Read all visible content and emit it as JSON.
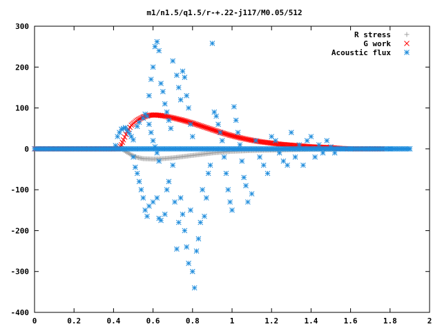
{
  "chart_data": {
    "type": "scatter",
    "title": "m1/n1.5/q1.5/r-+.22-j117/M0.05/512",
    "xlabel": "",
    "ylabel": "",
    "xlim": [
      0,
      2
    ],
    "ylim": [
      -400,
      300
    ],
    "x_ticks": [
      "0",
      "0.2",
      "0.4",
      "0.6",
      "0.8",
      "1",
      "1.2",
      "1.4",
      "1.6",
      "1.8",
      "2"
    ],
    "y_ticks": [
      "300",
      "200",
      "100",
      "0",
      "-100",
      "-200",
      "-300",
      "-400"
    ],
    "legend_position": "top-right",
    "series": [
      {
        "name": "R stress",
        "marker": "+",
        "color": "#a0a0a0",
        "curve": [
          [
            0.0,
            0
          ],
          [
            0.38,
            0
          ],
          [
            0.44,
            0
          ],
          [
            0.46,
            -6
          ],
          [
            0.48,
            -12
          ],
          [
            0.5,
            -17
          ],
          [
            0.52,
            -21
          ],
          [
            0.55,
            -24
          ],
          [
            0.6,
            -25
          ],
          [
            0.65,
            -24
          ],
          [
            0.7,
            -22
          ],
          [
            0.75,
            -19
          ],
          [
            0.8,
            -16
          ],
          [
            0.85,
            -13
          ],
          [
            0.9,
            -10
          ],
          [
            0.95,
            -8
          ],
          [
            1.0,
            -6
          ],
          [
            1.1,
            -4
          ],
          [
            1.2,
            -3
          ],
          [
            1.3,
            -2
          ],
          [
            1.4,
            -1
          ],
          [
            1.5,
            -1
          ],
          [
            1.55,
            0
          ],
          [
            1.6,
            0
          ],
          [
            1.7,
            0
          ],
          [
            1.76,
            0
          ]
        ]
      },
      {
        "name": "G work",
        "marker": "x",
        "color": "#ff0000",
        "curve": [
          [
            0.0,
            0
          ],
          [
            0.42,
            0
          ],
          [
            0.43,
            2
          ],
          [
            0.44,
            10
          ],
          [
            0.45,
            22
          ],
          [
            0.47,
            42
          ],
          [
            0.49,
            58
          ],
          [
            0.52,
            70
          ],
          [
            0.55,
            78
          ],
          [
            0.58,
            82
          ],
          [
            0.61,
            83
          ],
          [
            0.65,
            81
          ],
          [
            0.7,
            76
          ],
          [
            0.75,
            70
          ],
          [
            0.8,
            63
          ],
          [
            0.85,
            55
          ],
          [
            0.9,
            47
          ],
          [
            0.95,
            39
          ],
          [
            1.0,
            32
          ],
          [
            1.05,
            26
          ],
          [
            1.1,
            21
          ],
          [
            1.15,
            17
          ],
          [
            1.2,
            14
          ],
          [
            1.25,
            11
          ],
          [
            1.3,
            9
          ],
          [
            1.35,
            7
          ],
          [
            1.4,
            5
          ],
          [
            1.45,
            4
          ],
          [
            1.5,
            3
          ],
          [
            1.55,
            1
          ],
          [
            1.6,
            0
          ],
          [
            1.7,
            0
          ],
          [
            1.76,
            0
          ]
        ]
      },
      {
        "name": "Acoustic flux",
        "marker": "*",
        "color": "#1e8cdc",
        "baseline": [
          [
            0.0,
            0
          ],
          [
            1.9,
            0
          ]
        ],
        "points": [
          [
            0.41,
            8
          ],
          [
            0.42,
            30
          ],
          [
            0.43,
            40
          ],
          [
            0.44,
            48
          ],
          [
            0.45,
            50
          ],
          [
            0.46,
            52
          ],
          [
            0.47,
            45
          ],
          [
            0.48,
            38
          ],
          [
            0.49,
            30
          ],
          [
            0.5,
            22
          ],
          [
            0.52,
            55
          ],
          [
            0.53,
            65
          ],
          [
            0.55,
            75
          ],
          [
            0.56,
            85
          ],
          [
            0.57,
            80
          ],
          [
            0.58,
            60
          ],
          [
            0.59,
            40
          ],
          [
            0.6,
            20
          ],
          [
            0.61,
            5
          ],
          [
            0.62,
            -10
          ],
          [
            0.63,
            -30
          ],
          [
            0.5,
            -20
          ],
          [
            0.51,
            -45
          ],
          [
            0.52,
            -60
          ],
          [
            0.53,
            -80
          ],
          [
            0.54,
            -100
          ],
          [
            0.55,
            -120
          ],
          [
            0.56,
            -150
          ],
          [
            0.57,
            -165
          ],
          [
            0.58,
            -140
          ],
          [
            0.6,
            -130
          ],
          [
            0.62,
            -120
          ],
          [
            0.63,
            -170
          ],
          [
            0.64,
            -175
          ],
          [
            0.66,
            -160
          ],
          [
            0.67,
            -100
          ],
          [
            0.68,
            -80
          ],
          [
            0.58,
            130
          ],
          [
            0.59,
            170
          ],
          [
            0.6,
            200
          ],
          [
            0.61,
            250
          ],
          [
            0.62,
            262
          ],
          [
            0.63,
            240
          ],
          [
            0.64,
            160
          ],
          [
            0.65,
            140
          ],
          [
            0.66,
            110
          ],
          [
            0.67,
            90
          ],
          [
            0.68,
            70
          ],
          [
            0.69,
            50
          ],
          [
            0.7,
            215
          ],
          [
            0.72,
            180
          ],
          [
            0.73,
            150
          ],
          [
            0.74,
            120
          ],
          [
            0.75,
            190
          ],
          [
            0.76,
            175
          ],
          [
            0.77,
            130
          ],
          [
            0.78,
            100
          ],
          [
            0.79,
            60
          ],
          [
            0.8,
            30
          ],
          [
            0.7,
            -40
          ],
          [
            0.71,
            -130
          ],
          [
            0.72,
            -245
          ],
          [
            0.73,
            -180
          ],
          [
            0.74,
            -120
          ],
          [
            0.75,
            -160
          ],
          [
            0.76,
            -200
          ],
          [
            0.77,
            -240
          ],
          [
            0.78,
            -280
          ],
          [
            0.79,
            -150
          ],
          [
            0.8,
            -300
          ],
          [
            0.81,
            -340
          ],
          [
            0.82,
            -250
          ],
          [
            0.83,
            -220
          ],
          [
            0.84,
            -180
          ],
          [
            0.85,
            -100
          ],
          [
            0.86,
            -165
          ],
          [
            0.87,
            -120
          ],
          [
            0.88,
            -60
          ],
          [
            0.89,
            -40
          ],
          [
            0.9,
            258
          ],
          [
            0.91,
            90
          ],
          [
            0.92,
            80
          ],
          [
            0.93,
            60
          ],
          [
            0.94,
            40
          ],
          [
            0.95,
            20
          ],
          [
            0.96,
            -20
          ],
          [
            0.97,
            -60
          ],
          [
            0.98,
            -100
          ],
          [
            0.99,
            -130
          ],
          [
            1.0,
            -150
          ],
          [
            1.01,
            103
          ],
          [
            1.02,
            70
          ],
          [
            1.03,
            40
          ],
          [
            1.04,
            10
          ],
          [
            1.05,
            -30
          ],
          [
            1.06,
            -70
          ],
          [
            1.07,
            -90
          ],
          [
            1.08,
            -130
          ],
          [
            1.1,
            -110
          ],
          [
            1.12,
            20
          ],
          [
            1.14,
            -20
          ],
          [
            1.16,
            -40
          ],
          [
            1.18,
            -60
          ],
          [
            1.2,
            30
          ],
          [
            1.22,
            20
          ],
          [
            1.24,
            -10
          ],
          [
            1.26,
            -30
          ],
          [
            1.28,
            -40
          ],
          [
            1.3,
            40
          ],
          [
            1.32,
            -20
          ],
          [
            1.34,
            10
          ],
          [
            1.36,
            -40
          ],
          [
            1.38,
            20
          ],
          [
            1.4,
            30
          ],
          [
            1.42,
            -20
          ],
          [
            1.44,
            10
          ],
          [
            1.46,
            -10
          ],
          [
            1.48,
            20
          ],
          [
            1.5,
            5
          ],
          [
            1.52,
            -10
          ],
          [
            1.54,
            0
          ],
          [
            1.56,
            0
          ],
          [
            1.6,
            0
          ],
          [
            1.7,
            0
          ],
          [
            1.8,
            0
          ],
          [
            1.9,
            0
          ]
        ]
      }
    ]
  }
}
